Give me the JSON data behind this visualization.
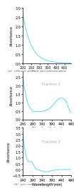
{
  "line_color": "#6dd0ea",
  "line_width": 0.7,
  "bg_color": "#ffffff",
  "label_a": "(a)  effluent without preconcentration",
  "label_b": "(b)  pre-concentrated effluent",
  "fraction1_label": "Fraction 1",
  "fraction2_label": "Fraction 2",
  "xlabel": "Wavelength (nm)",
  "ylabel": "Absorbance",
  "tick_fontsize": 3.5,
  "label_fontsize": 3.5,
  "annot_fontsize": 3.8,
  "caption_fontsize": 3.2,
  "panel1_xlim": [
    200,
    490
  ],
  "panel1_xticks": [
    200,
    250,
    300,
    350,
    400,
    450
  ],
  "panel1_ylim": [
    0,
    3.0
  ],
  "panel1_yticks": [
    0,
    0.5,
    1.0,
    1.5,
    2.0,
    2.5,
    3.0
  ],
  "panel23_xlim": [
    240,
    490
  ],
  "panel23_xticks": [
    240,
    290,
    340,
    390,
    440,
    490
  ],
  "panel2_ylim": [
    0,
    2.8
  ],
  "panel2_yticks": [
    0,
    0.5,
    1.0,
    1.5,
    2.0,
    2.5
  ],
  "panel3_ylim": [
    -0.5,
    3.5
  ],
  "panel3_yticks": [
    -0.5,
    0,
    0.5,
    1.0,
    1.5,
    2.0,
    2.5,
    3.0,
    3.5
  ]
}
